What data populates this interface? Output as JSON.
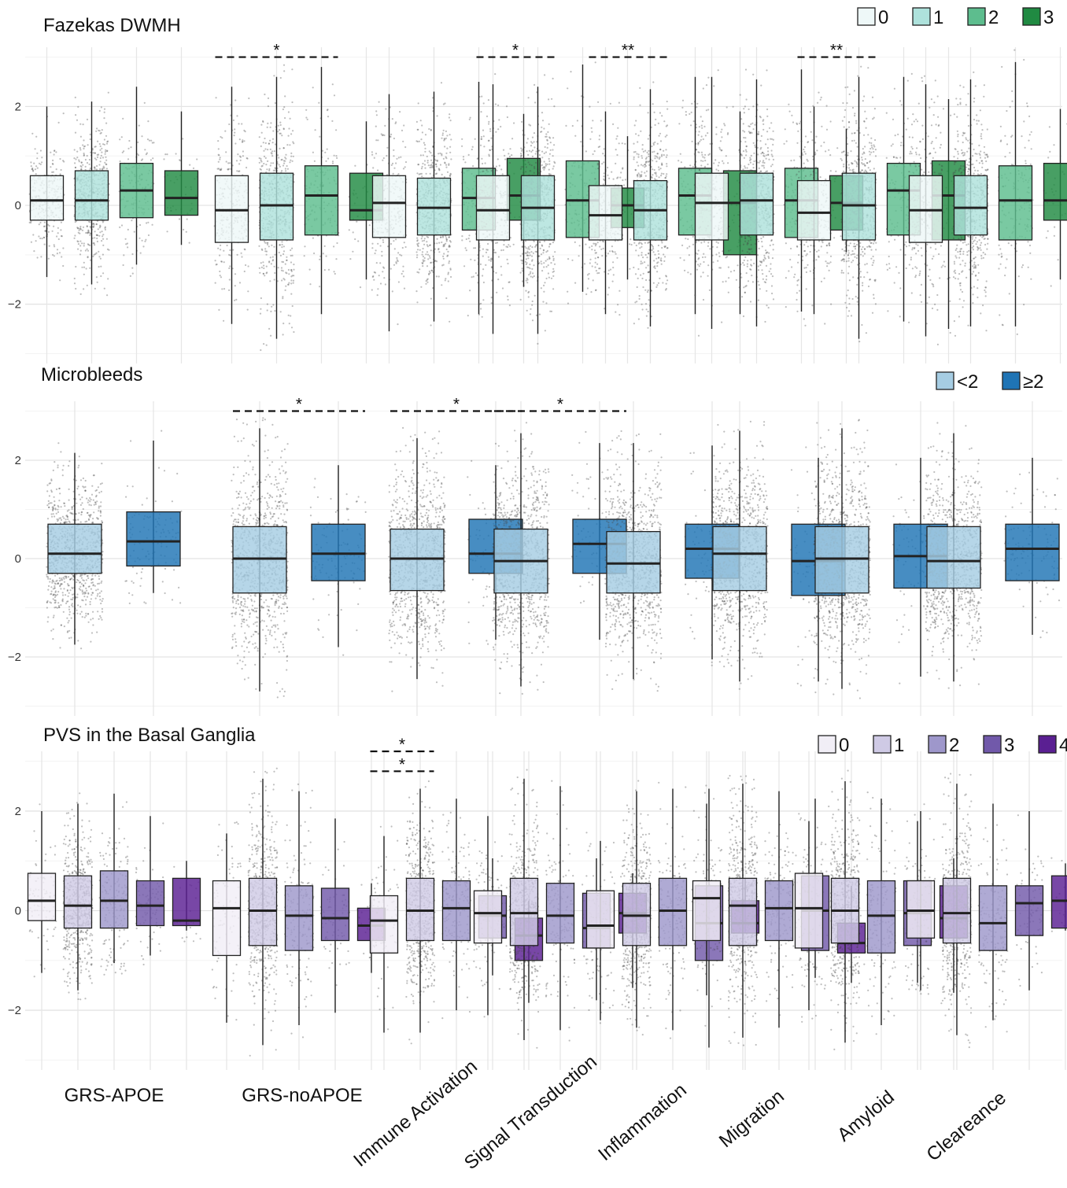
{
  "chart_data": {
    "type": "box",
    "groups": [
      "GRS-APOE",
      "GRS-noAPOE",
      "Immune Activation",
      "Signal Transduction",
      "Inflammation",
      "Migration",
      "Amyloid",
      "Cleareance"
    ],
    "panels": [
      {
        "title": "Fazekas DWMH",
        "ylim": [
          -3.2,
          3.2
        ],
        "yticks": [
          -2,
          0,
          2
        ],
        "ytick_labels": [
          "−2",
          "0",
          "2"
        ],
        "legend_labels": [
          "0",
          "1",
          "2",
          "3"
        ],
        "colors": [
          "#eef8f8",
          "#aee2dc",
          "#5dbd8e",
          "#208a42"
        ],
        "density": [
          200,
          500,
          110,
          30
        ],
        "boxes": [
          [
            [
              -1.45,
              -0.3,
              0.1,
              0.6,
              2.0
            ],
            [
              -1.6,
              -0.3,
              0.1,
              0.7,
              2.1
            ],
            [
              -1.2,
              -0.25,
              0.3,
              0.85,
              2.4
            ],
            [
              -0.8,
              -0.2,
              0.15,
              0.7,
              1.9
            ]
          ],
          [
            [
              -2.4,
              -0.75,
              -0.1,
              0.6,
              2.4
            ],
            [
              -2.7,
              -0.7,
              0.0,
              0.65,
              2.6
            ],
            [
              -2.2,
              -0.6,
              0.2,
              0.8,
              2.8
            ],
            [
              -1.5,
              -0.3,
              -0.1,
              0.65,
              1.7
            ]
          ],
          [
            [
              -2.55,
              -0.65,
              0.05,
              0.6,
              2.25
            ],
            [
              -2.35,
              -0.6,
              -0.05,
              0.55,
              2.3
            ],
            [
              -2.2,
              -0.5,
              0.15,
              0.75,
              2.5
            ],
            [
              -1.65,
              -0.3,
              0.2,
              0.95,
              1.85
            ]
          ],
          [
            [
              -2.6,
              -0.7,
              -0.1,
              0.6,
              2.45
            ],
            [
              -2.6,
              -0.7,
              -0.05,
              0.6,
              2.4
            ],
            [
              -1.75,
              -0.65,
              0.1,
              0.9,
              2.85
            ],
            [
              -1.5,
              -0.45,
              0.0,
              0.35,
              1.4
            ]
          ],
          [
            [
              -2.2,
              -0.7,
              -0.2,
              0.4,
              1.9
            ],
            [
              -2.45,
              -0.7,
              -0.1,
              0.5,
              2.35
            ],
            [
              -2.2,
              -0.6,
              0.2,
              0.75,
              2.6
            ],
            [
              -2.2,
              -1.0,
              0.05,
              0.7,
              1.9
            ]
          ],
          [
            [
              -2.5,
              -0.7,
              0.05,
              0.65,
              2.6
            ],
            [
              -2.45,
              -0.6,
              0.1,
              0.65,
              2.55
            ],
            [
              -2.15,
              -0.65,
              0.1,
              0.75,
              2.75
            ],
            [
              -0.95,
              -0.5,
              0.05,
              0.6,
              1.55
            ]
          ],
          [
            [
              -2.2,
              -0.7,
              -0.15,
              0.5,
              2.0
            ],
            [
              -2.7,
              -0.7,
              0.0,
              0.65,
              2.6
            ],
            [
              -2.35,
              -0.6,
              0.3,
              0.85,
              2.6
            ],
            [
              -2.5,
              -0.7,
              0.2,
              0.9,
              2.15
            ]
          ],
          [
            [
              -2.65,
              -0.75,
              -0.1,
              0.6,
              2.45
            ],
            [
              -2.45,
              -0.6,
              -0.05,
              0.6,
              2.55
            ],
            [
              -2.45,
              -0.7,
              0.1,
              0.8,
              2.9
            ],
            [
              -1.5,
              -0.3,
              0.1,
              0.85,
              1.95
            ]
          ]
        ],
        "sig": [
          {
            "group": 1,
            "from": 0,
            "to": 2,
            "label": "*",
            "y": 3.0
          },
          {
            "group": 3,
            "from": 0,
            "to": 1,
            "label": "*",
            "y": 3.0
          },
          {
            "group": 4,
            "from": 0,
            "to": 1,
            "label": "**",
            "y": 3.0
          },
          {
            "group": 6,
            "from": 0,
            "to": 1,
            "label": "**",
            "y": 3.0
          }
        ]
      },
      {
        "title": "Microbleeds",
        "ylim": [
          -3.2,
          3.2
        ],
        "yticks": [
          -2,
          0,
          2
        ],
        "ytick_labels": [
          "−2",
          "0",
          "2"
        ],
        "legend_labels": [
          "<2",
          "≥2"
        ],
        "colors": [
          "#a6cde3",
          "#1f74b5"
        ],
        "density": [
          900,
          80
        ],
        "boxes": [
          [
            [
              -1.75,
              -0.3,
              0.1,
              0.7,
              2.15
            ],
            [
              -0.7,
              -0.15,
              0.35,
              0.95,
              2.4
            ]
          ],
          [
            [
              -2.7,
              -0.7,
              0.0,
              0.65,
              2.65
            ],
            [
              -1.8,
              -0.45,
              0.1,
              0.7,
              1.9
            ]
          ],
          [
            [
              -2.45,
              -0.65,
              0.0,
              0.6,
              2.45
            ],
            [
              -1.65,
              -0.3,
              0.1,
              0.8,
              1.9
            ]
          ],
          [
            [
              -2.6,
              -0.7,
              -0.05,
              0.6,
              2.55
            ],
            [
              -1.65,
              -0.3,
              0.3,
              0.8,
              2.35
            ]
          ],
          [
            [
              -2.45,
              -0.7,
              -0.1,
              0.55,
              2.35
            ],
            [
              -2.05,
              -0.4,
              0.2,
              0.7,
              2.3
            ]
          ],
          [
            [
              -2.5,
              -0.65,
              0.1,
              0.65,
              2.6
            ],
            [
              -2.5,
              -0.75,
              -0.05,
              0.7,
              2.05
            ]
          ],
          [
            [
              -2.65,
              -0.7,
              0.0,
              0.65,
              2.65
            ],
            [
              -2.4,
              -0.6,
              0.05,
              0.7,
              2.05
            ]
          ],
          [
            [
              -2.5,
              -0.6,
              -0.05,
              0.65,
              2.55
            ],
            [
              -1.55,
              -0.45,
              0.2,
              0.7,
              2.05
            ]
          ]
        ],
        "sig": [
          {
            "group": 1,
            "from": 0,
            "to": 1,
            "label": "*",
            "y": 3.0
          },
          {
            "group": 2,
            "from": 0,
            "to": 1,
            "label": "*",
            "y": 3.0
          },
          {
            "group": 3,
            "from": 0,
            "to": 1,
            "label": "*",
            "y": 3.0
          }
        ]
      },
      {
        "title": "PVS in the Basal Ganglia",
        "ylim": [
          -3.2,
          3.2
        ],
        "yticks": [
          -2,
          0,
          2
        ],
        "ytick_labels": [
          "−2",
          "0",
          "2"
        ],
        "legend_labels": [
          "0",
          "1",
          "2",
          "3",
          "4"
        ],
        "colors": [
          "#f1eef6",
          "#cfcae5",
          "#9e97cb",
          "#7159aa",
          "#5a1f92"
        ],
        "density": [
          60,
          500,
          120,
          50,
          15
        ],
        "boxes": [
          [
            [
              -1.25,
              -0.2,
              0.2,
              0.75,
              2.0
            ],
            [
              -1.6,
              -0.35,
              0.1,
              0.7,
              2.15
            ],
            [
              -1.05,
              -0.35,
              0.2,
              0.8,
              2.35
            ],
            [
              -0.9,
              -0.3,
              0.1,
              0.6,
              1.9
            ],
            [
              -0.4,
              -0.3,
              -0.2,
              0.65,
              1.0
            ]
          ],
          [
            [
              -2.25,
              -0.9,
              0.05,
              0.6,
              1.55
            ],
            [
              -2.7,
              -0.7,
              0.0,
              0.65,
              2.65
            ],
            [
              -2.3,
              -0.8,
              -0.1,
              0.5,
              2.4
            ],
            [
              -2.05,
              -0.6,
              -0.15,
              0.45,
              1.85
            ],
            [
              -1.25,
              -0.6,
              -0.3,
              0.05,
              0.55
            ]
          ],
          [
            [
              -2.45,
              -0.85,
              -0.2,
              0.3,
              1.5
            ],
            [
              -2.45,
              -0.6,
              0.0,
              0.65,
              2.45
            ],
            [
              -2.0,
              -0.6,
              0.05,
              0.6,
              2.25
            ],
            [
              -1.3,
              -0.55,
              -0.1,
              0.3,
              1.05
            ],
            [
              -1.85,
              -1.0,
              -0.5,
              -0.15,
              0.2
            ]
          ],
          [
            [
              -2.1,
              -0.65,
              -0.05,
              0.4,
              1.9
            ],
            [
              -2.6,
              -0.7,
              -0.05,
              0.65,
              2.65
            ],
            [
              -2.4,
              -0.65,
              -0.1,
              0.55,
              2.5
            ],
            [
              -1.8,
              -0.75,
              -0.35,
              0.35,
              1.05
            ],
            [
              -1.55,
              -0.45,
              -0.05,
              0.35,
              0.75
            ]
          ],
          [
            [
              -2.2,
              -0.75,
              -0.3,
              0.4,
              1.4
            ],
            [
              -2.35,
              -0.7,
              -0.1,
              0.55,
              2.4
            ],
            [
              -2.4,
              -0.7,
              0.0,
              0.65,
              2.45
            ],
            [
              -2.75,
              -1.0,
              -0.25,
              0.5,
              2.45
            ],
            [
              -0.45,
              -0.45,
              -0.25,
              0.2,
              0.65
            ]
          ],
          [
            [
              -1.7,
              -0.6,
              0.25,
              0.6,
              2.15
            ],
            [
              -2.55,
              -0.7,
              0.1,
              0.65,
              2.55
            ],
            [
              -2.35,
              -0.6,
              0.05,
              0.6,
              2.4
            ],
            [
              -1.35,
              -0.8,
              0.0,
              0.7,
              2.25
            ],
            [
              -1.45,
              -0.85,
              -0.65,
              -0.25,
              0.5
            ]
          ],
          [
            [
              -2.0,
              -0.75,
              0.05,
              0.75,
              1.8
            ],
            [
              -2.65,
              -0.65,
              0.0,
              0.65,
              2.6
            ],
            [
              -2.3,
              -0.85,
              -0.1,
              0.6,
              2.25
            ],
            [
              -1.45,
              -0.7,
              -0.05,
              0.6,
              1.8
            ],
            [
              -1.65,
              -0.55,
              -0.15,
              0.5,
              1.05
            ]
          ],
          [
            [
              -1.6,
              -0.55,
              0.0,
              0.6,
              2.0
            ],
            [
              -2.5,
              -0.65,
              -0.05,
              0.65,
              2.55
            ],
            [
              -2.2,
              -0.8,
              -0.25,
              0.5,
              2.15
            ],
            [
              -1.6,
              -0.5,
              0.15,
              0.5,
              2.0
            ],
            [
              -0.4,
              -0.35,
              0.2,
              0.7,
              0.95
            ]
          ]
        ],
        "sig": [
          {
            "group": 2,
            "from": 0,
            "to": 1,
            "label": "*",
            "y": 3.2
          },
          {
            "group": 2,
            "from": 0,
            "to": 1,
            "label": "*",
            "y": 2.8
          }
        ]
      }
    ]
  }
}
